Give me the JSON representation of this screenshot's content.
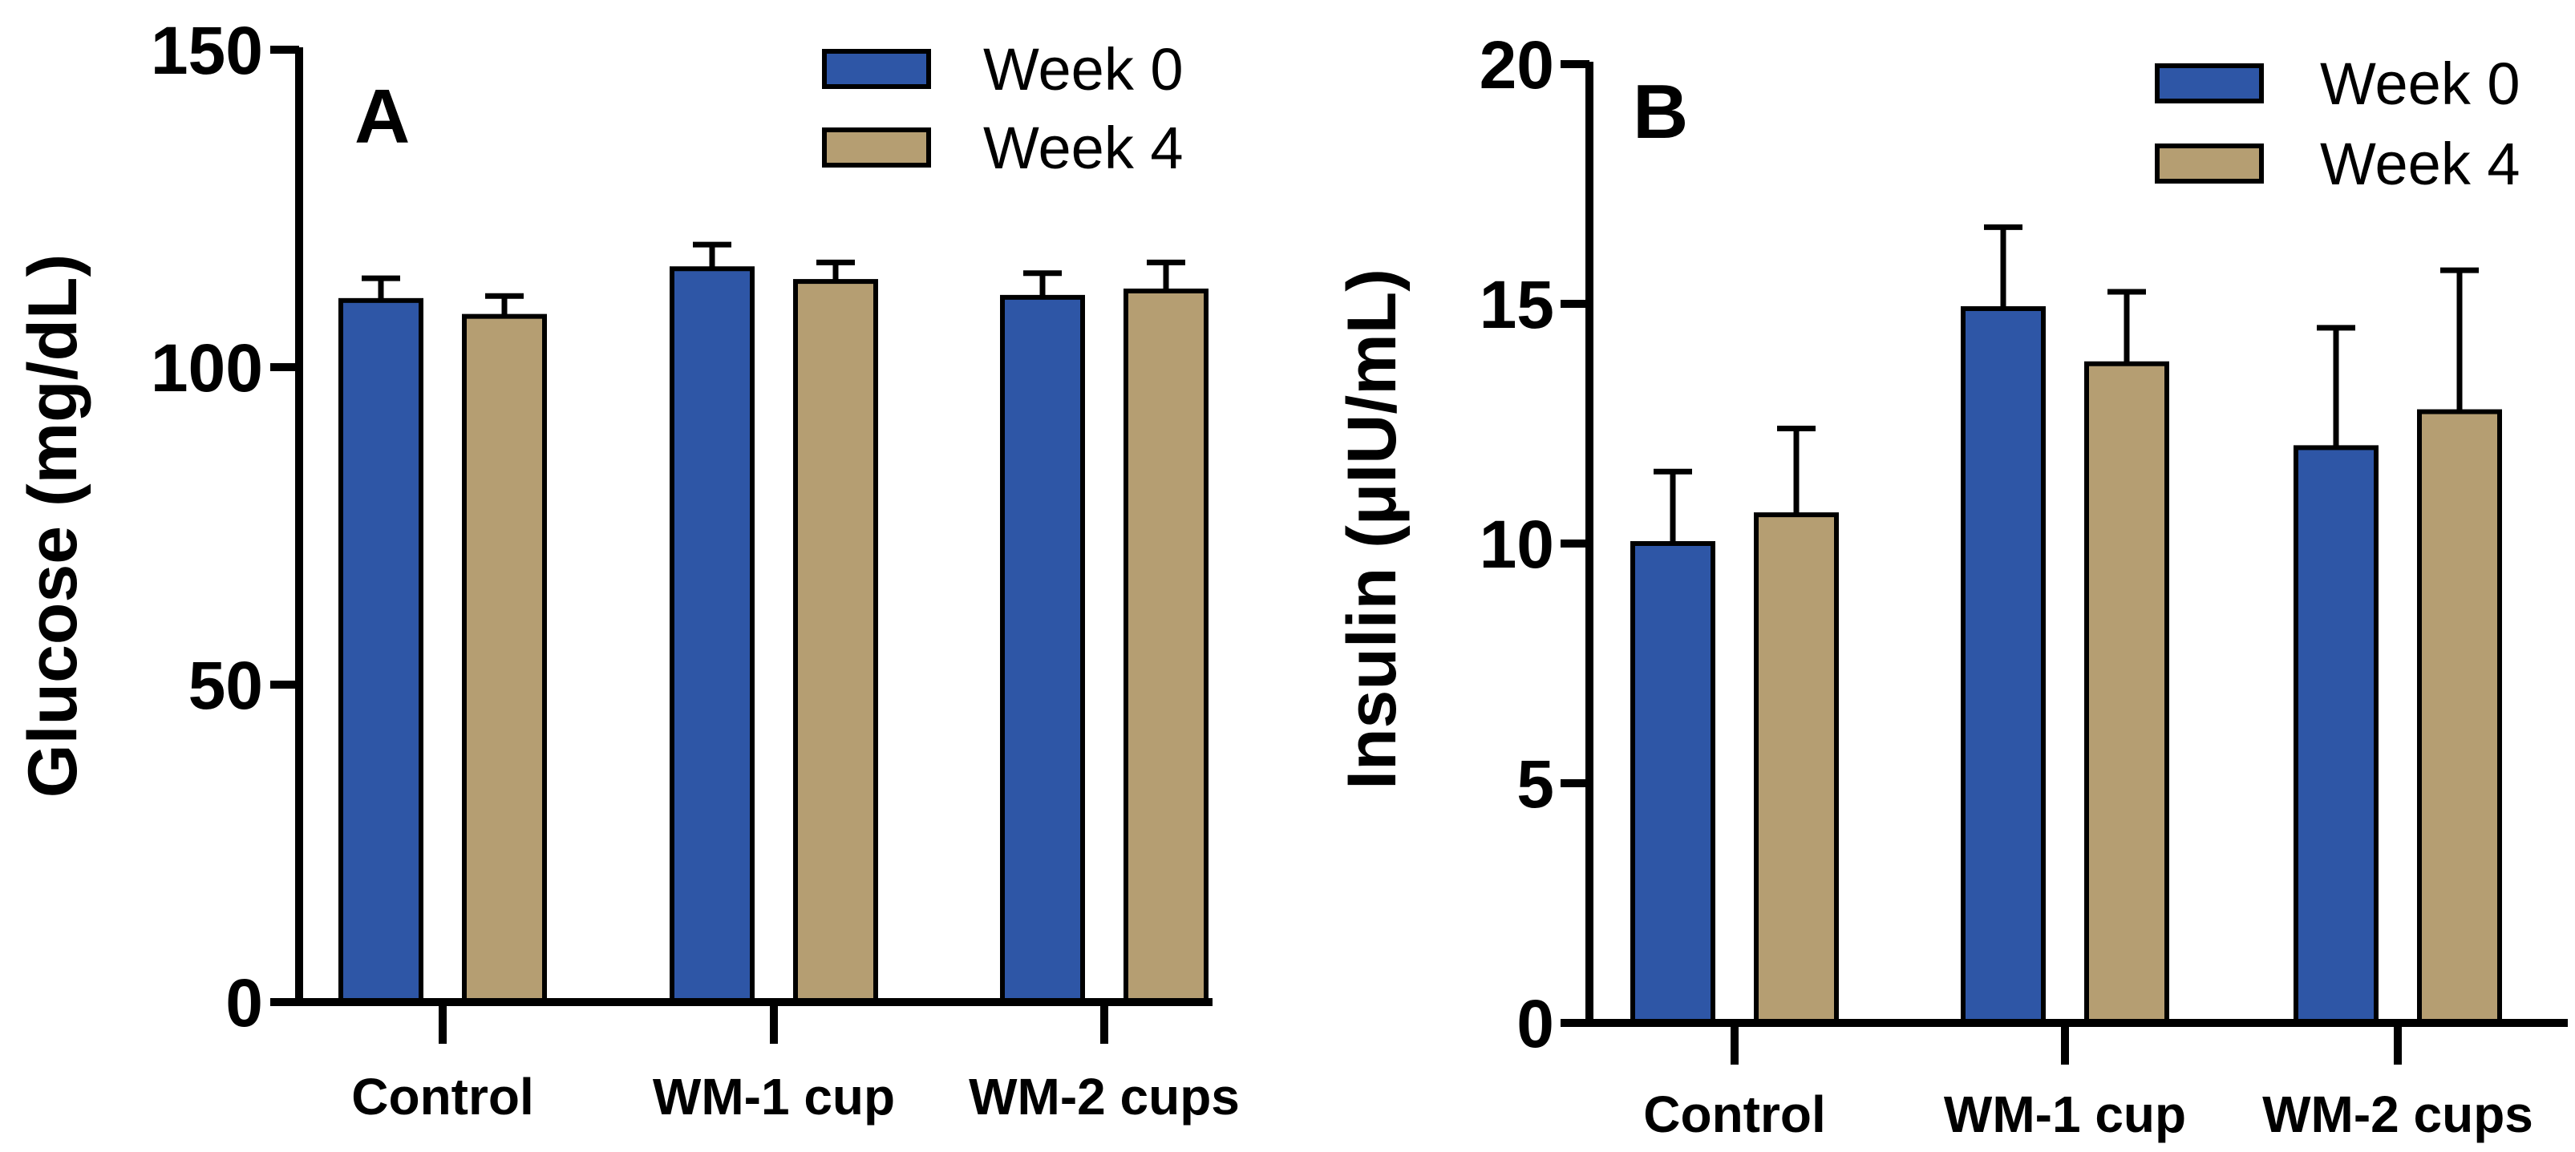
{
  "chart_data": [
    {
      "type": "bar",
      "panel_label": "A",
      "title": "",
      "xlabel": "",
      "ylabel": "Glucose (mg/dL)",
      "ylim": [
        0,
        150
      ],
      "yticks": [
        0,
        50,
        100,
        150
      ],
      "categories": [
        "Control",
        "WM-1 cup",
        "WM-2 cups"
      ],
      "series": [
        {
          "name": "Week 0",
          "color": "#2E56A6",
          "values": [
            110.5,
            115.5,
            111.0
          ],
          "errors": [
            3.5,
            3.8,
            3.8
          ]
        },
        {
          "name": "Week 4",
          "color": "#B59E72",
          "values": [
            108.0,
            113.5,
            112.0
          ],
          "errors": [
            3.2,
            3.0,
            4.5
          ]
        }
      ],
      "legend": "top-right",
      "grid": false
    },
    {
      "type": "bar",
      "panel_label": "B",
      "title": "",
      "xlabel": "",
      "ylabel": "Insulin (μIU/mL)",
      "ylim": [
        0,
        20
      ],
      "yticks": [
        0,
        5,
        10,
        15,
        20
      ],
      "categories": [
        "Control",
        "WM-1 cup",
        "WM-2 cups"
      ],
      "series": [
        {
          "name": "Week 0",
          "color": "#2E56A6",
          "values": [
            10.0,
            14.9,
            12.0
          ],
          "errors": [
            1.5,
            1.7,
            2.5
          ]
        },
        {
          "name": "Week 4",
          "color": "#B59E72",
          "values": [
            10.6,
            13.75,
            12.75
          ],
          "errors": [
            1.8,
            1.5,
            2.95
          ]
        }
      ],
      "legend": "top-right",
      "grid": false
    }
  ]
}
